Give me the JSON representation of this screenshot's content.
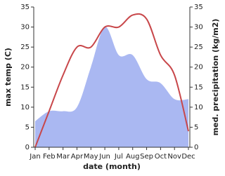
{
  "chart_data": {
    "type": "line_area",
    "xlabel": "date (month)",
    "ylabel": "max temp (C)",
    "y2label": "med. precipitation (kg/m2)",
    "categories": [
      "Jan",
      "Feb",
      "Mar",
      "Apr",
      "May",
      "Jun",
      "Jul",
      "Aug",
      "Sep",
      "Oct",
      "Nov",
      "Dec"
    ],
    "series": [
      {
        "name": "max temp",
        "kind": "line",
        "color": "#c8474a",
        "values": [
          0,
          9,
          18,
          25,
          25,
          30,
          30,
          33,
          32,
          23,
          18,
          4
        ]
      },
      {
        "name": "med. precipitation",
        "kind": "area",
        "axis": "y2",
        "color": "#aab8f2",
        "values": [
          6.5,
          9,
          9,
          10,
          20,
          30,
          23,
          23,
          17,
          16,
          12,
          12
        ]
      }
    ],
    "ylim": [
      0,
      35
    ],
    "yticks": [
      0,
      5,
      10,
      15,
      20,
      25,
      30,
      35
    ],
    "y2lim": [
      0,
      35
    ],
    "y2ticks": [
      0,
      5,
      10,
      15,
      20,
      25,
      30,
      35
    ]
  }
}
